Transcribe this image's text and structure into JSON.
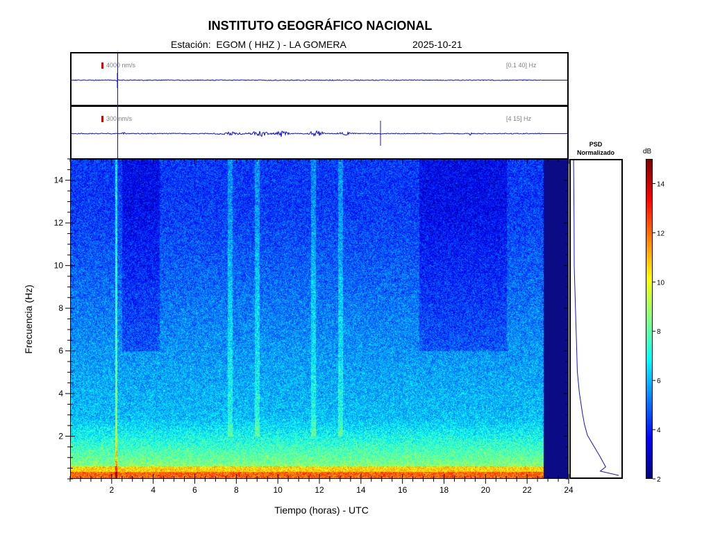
{
  "header": {
    "title": "INSTITUTO GEOGRÁFICO NACIONAL",
    "station_line": "Estación:  EGOM ( HHZ ) - LA GOMERA",
    "date": "2025-10-21"
  },
  "traces": [
    {
      "scale_label": "4000 nm/s",
      "band_label": "[0.1 40] Hz"
    },
    {
      "scale_label": "300 nm/s",
      "band_label": "[4 15] Hz"
    }
  ],
  "psd": {
    "title_line1": "PSD",
    "title_line2": "Normalizado"
  },
  "colors": {
    "trace": "#1010d0",
    "scale_mark": "#e00000",
    "nodata": "#0b0b86"
  },
  "chart_data": {
    "type": "heatmap",
    "xlabel": "Tiempo (horas) - UTC",
    "ylabel": "Frecuencia  (Hz)",
    "xlim": [
      0,
      24
    ],
    "ylim": [
      0,
      15
    ],
    "xticks": [
      "2",
      "4",
      "6",
      "8",
      "10",
      "12",
      "14",
      "16",
      "18",
      "20",
      "22",
      "24"
    ],
    "yticks": [
      "2",
      "4",
      "6",
      "8",
      "10",
      "12",
      "14"
    ],
    "data_end_hour": 22.8,
    "colorbar": {
      "label": "dB",
      "range": [
        2,
        15
      ],
      "ticks": [
        "2",
        "4",
        "6",
        "8",
        "10",
        "12",
        "14"
      ],
      "colormap": "jet"
    },
    "events_hours": [
      2.2,
      14.9
    ],
    "psd_profile": [
      {
        "f": 0.1,
        "v": 1.0
      },
      {
        "f": 0.3,
        "v": 0.6
      },
      {
        "f": 0.5,
        "v": 0.72
      },
      {
        "f": 1.0,
        "v": 0.6
      },
      {
        "f": 1.5,
        "v": 0.45
      },
      {
        "f": 2.0,
        "v": 0.33
      },
      {
        "f": 2.5,
        "v": 0.26
      },
      {
        "f": 3.0,
        "v": 0.22
      },
      {
        "f": 4.0,
        "v": 0.16
      },
      {
        "f": 5.0,
        "v": 0.12
      },
      {
        "f": 6.0,
        "v": 0.09
      },
      {
        "f": 8.0,
        "v": 0.07
      },
      {
        "f": 10.0,
        "v": 0.055
      },
      {
        "f": 12.0,
        "v": 0.045
      },
      {
        "f": 15.0,
        "v": 0.03
      }
    ]
  }
}
